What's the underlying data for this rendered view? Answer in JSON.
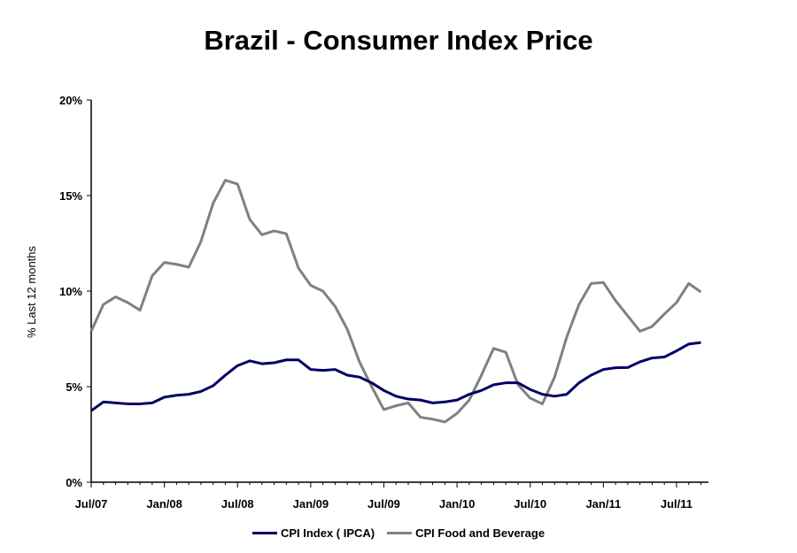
{
  "chart_data": {
    "type": "line",
    "title": "Brazil - Consumer Index Price",
    "ylabel": "% Last 12 months",
    "xlabel": "",
    "ylim": [
      0,
      20
    ],
    "yticks": [
      "0%",
      "5%",
      "10%",
      "15%",
      "20%"
    ],
    "x_start": "Jul/07",
    "x_tick_labels": [
      "Jul/07",
      "Jan/08",
      "Jul/08",
      "Jan/09",
      "Jul/09",
      "Jan/10",
      "Jul/10",
      "Jan/11",
      "Jul/11"
    ],
    "grid": false,
    "legend": "bottom",
    "series": [
      {
        "name": "CPI Index ( IPCA)",
        "color": "#000066",
        "values": [
          3.74,
          4.2,
          4.15,
          4.1,
          4.1,
          4.15,
          4.45,
          4.55,
          4.6,
          4.75,
          5.05,
          5.6,
          6.1,
          6.35,
          6.2,
          6.25,
          6.4,
          6.4,
          5.9,
          5.85,
          5.9,
          5.6,
          5.5,
          5.2,
          4.8,
          4.5,
          4.35,
          4.3,
          4.15,
          4.2,
          4.3,
          4.6,
          4.8,
          5.1,
          5.2,
          5.2,
          4.85,
          4.6,
          4.5,
          4.6,
          5.2,
          5.6,
          5.9,
          5.99,
          6.0,
          6.3,
          6.5,
          6.55,
          6.87,
          7.23,
          7.31
        ]
      },
      {
        "name": "CPI Food and Beverage",
        "color": "#808080",
        "values": [
          7.9,
          9.3,
          9.7,
          9.4,
          9.0,
          10.8,
          11.5,
          11.4,
          11.25,
          12.6,
          14.6,
          15.8,
          15.6,
          13.75,
          12.95,
          13.15,
          13.0,
          11.2,
          10.3,
          10.0,
          9.2,
          8.0,
          6.3,
          5.0,
          3.8,
          4.0,
          4.15,
          3.4,
          3.3,
          3.15,
          3.6,
          4.3,
          5.6,
          7.0,
          6.8,
          5.1,
          4.4,
          4.1,
          5.5,
          7.6,
          9.3,
          10.4,
          10.45,
          9.5,
          8.7,
          7.9,
          8.15,
          8.8,
          9.4,
          10.4,
          9.95
        ]
      }
    ]
  }
}
